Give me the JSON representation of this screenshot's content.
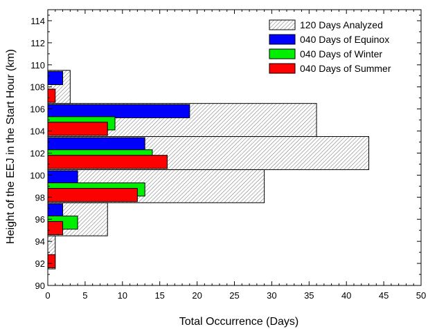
{
  "chart_data": {
    "type": "bar",
    "orientation": "horizontal",
    "xlabel": "Total Occurrence (Days)",
    "ylabel": "Height of the EEJ in the Start Hour (km)",
    "xlim": [
      0,
      50
    ],
    "ylim": [
      90,
      115
    ],
    "x_ticks": [
      0,
      5,
      10,
      15,
      20,
      25,
      30,
      35,
      40,
      45,
      50
    ],
    "y_ticks": [
      90,
      92,
      94,
      96,
      98,
      100,
      102,
      104,
      106,
      108,
      110,
      112,
      114
    ],
    "legend_position": "top-right",
    "grid": false,
    "series": [
      {
        "name": "120 Days Analyzed",
        "color": "#ffffff",
        "fill": "hatched",
        "bars": [
          {
            "y0": 91.5,
            "y1": 94.5,
            "value": 1
          },
          {
            "y0": 94.5,
            "y1": 97.5,
            "value": 8
          },
          {
            "y0": 97.5,
            "y1": 100.5,
            "value": 29
          },
          {
            "y0": 100.5,
            "y1": 103.5,
            "value": 43
          },
          {
            "y0": 103.5,
            "y1": 106.5,
            "value": 36
          },
          {
            "y0": 106.5,
            "y1": 109.5,
            "value": 3
          }
        ]
      },
      {
        "name": "040 Days of Equinox",
        "color": "#0000ff",
        "bars": [
          {
            "y0": 96.2,
            "y1": 97.4,
            "value": 2
          },
          {
            "y0": 99.2,
            "y1": 100.4,
            "value": 4
          },
          {
            "y0": 102.2,
            "y1": 103.4,
            "value": 13
          },
          {
            "y0": 105.2,
            "y1": 106.4,
            "value": 19
          },
          {
            "y0": 108.2,
            "y1": 109.4,
            "value": 2
          }
        ]
      },
      {
        "name": "040 Days of Winter",
        "color": "#00ee00",
        "bars": [
          {
            "y0": 95.1,
            "y1": 96.3,
            "value": 4
          },
          {
            "y0": 98.1,
            "y1": 99.3,
            "value": 13
          },
          {
            "y0": 101.1,
            "y1": 102.3,
            "value": 14
          },
          {
            "y0": 104.1,
            "y1": 105.3,
            "value": 9
          }
        ]
      },
      {
        "name": "040 Days of Summer",
        "color": "#ff0000",
        "bars": [
          {
            "y0": 91.6,
            "y1": 92.8,
            "value": 1
          },
          {
            "y0": 94.6,
            "y1": 95.8,
            "value": 2
          },
          {
            "y0": 97.6,
            "y1": 98.8,
            "value": 12
          },
          {
            "y0": 100.6,
            "y1": 101.8,
            "value": 16
          },
          {
            "y0": 103.6,
            "y1": 104.8,
            "value": 8
          },
          {
            "y0": 106.6,
            "y1": 107.8,
            "value": 1
          }
        ]
      }
    ]
  }
}
